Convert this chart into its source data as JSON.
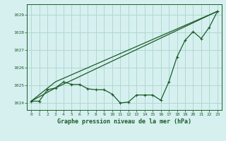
{
  "background_color": "#d6f0f0",
  "grid_color": "#b0d8d0",
  "line_color": "#1a5c28",
  "title": "Graphe pression niveau de la mer (hPa)",
  "xlim": [
    -0.5,
    23.5
  ],
  "ylim": [
    1023.6,
    1029.6
  ],
  "yticks": [
    1024,
    1025,
    1026,
    1027,
    1028,
    1029
  ],
  "xticks": [
    0,
    1,
    2,
    3,
    4,
    5,
    6,
    7,
    8,
    9,
    10,
    11,
    12,
    13,
    14,
    15,
    16,
    17,
    18,
    19,
    20,
    21,
    22,
    23
  ],
  "line1_x": [
    0,
    1,
    2,
    3,
    4,
    5,
    6,
    7,
    8,
    9,
    10,
    11,
    12,
    13,
    14,
    15,
    16,
    17,
    18,
    19,
    20,
    21,
    22,
    23
  ],
  "line1_y": [
    1024.1,
    1024.1,
    1024.75,
    1024.85,
    1025.2,
    1025.05,
    1025.05,
    1024.8,
    1024.75,
    1024.75,
    1024.5,
    1024.0,
    1024.05,
    1024.45,
    1024.45,
    1024.45,
    1024.15,
    1025.2,
    1026.6,
    1027.55,
    1028.05,
    1027.65,
    1028.3,
    1029.2
  ],
  "line2_x": [
    0,
    3,
    23
  ],
  "line2_y": [
    1024.1,
    1025.2,
    1029.2
  ],
  "line3_x": [
    0,
    3,
    23
  ],
  "line3_y": [
    1024.1,
    1024.85,
    1029.2
  ]
}
